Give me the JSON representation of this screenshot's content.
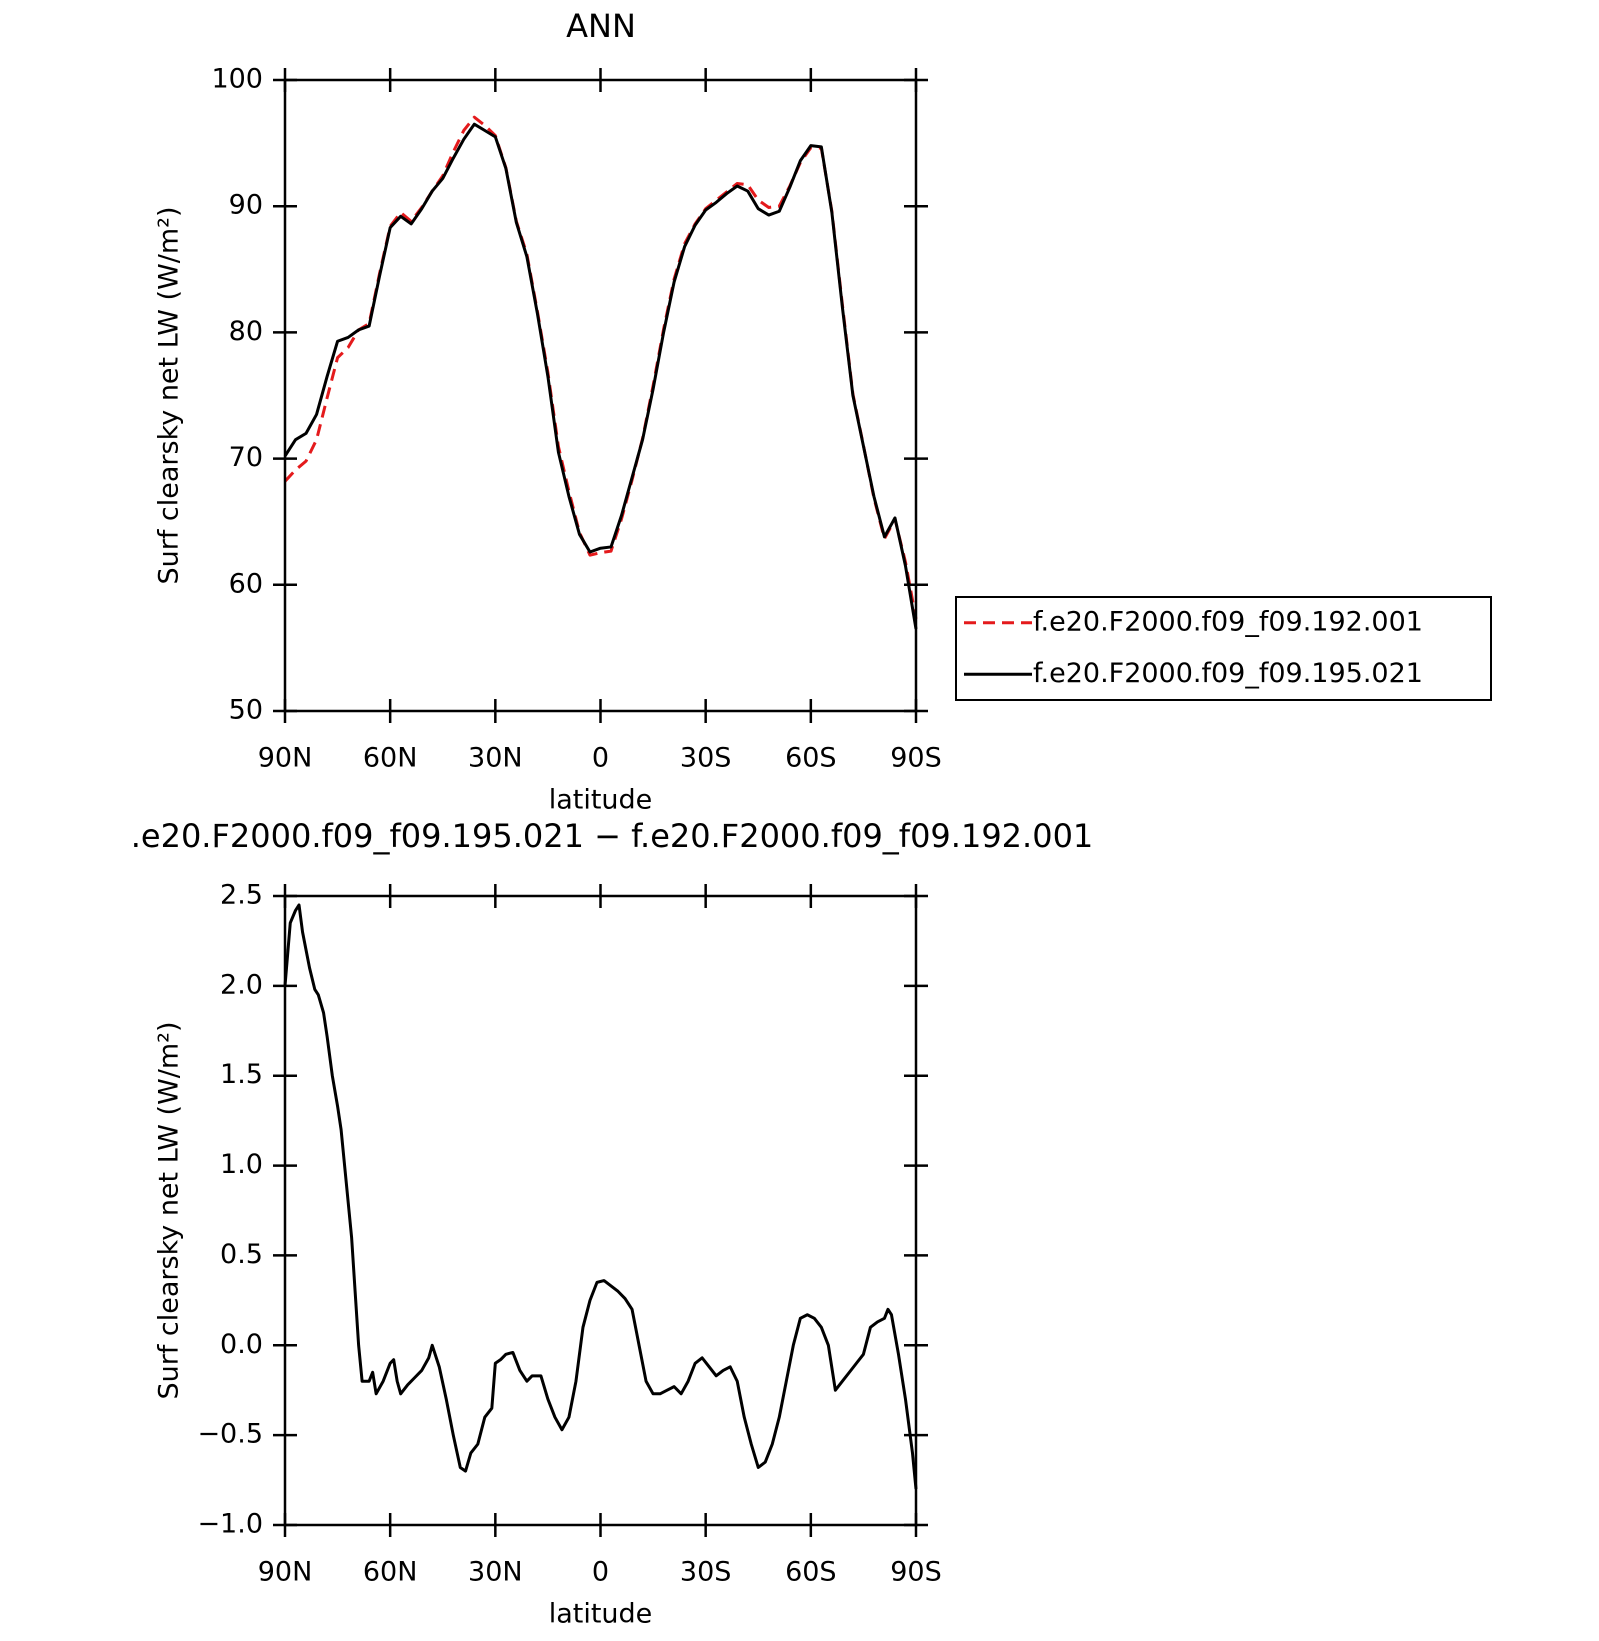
{
  "chart_data": [
    {
      "type": "line",
      "title": "ANN",
      "ylabel": "Surf clearsky net LW (W/m²)",
      "xlabel": "latitude",
      "x": [
        90,
        87,
        84,
        81,
        78,
        75,
        72,
        69,
        66,
        63,
        60,
        57,
        54,
        51,
        48,
        45,
        42,
        39,
        36,
        33,
        30,
        27,
        24,
        21,
        18,
        15,
        12,
        9,
        6,
        3,
        0,
        -3,
        -6,
        -9,
        -12,
        -15,
        -18,
        -21,
        -24,
        -27,
        -30,
        -33,
        -36,
        -39,
        -42,
        -45,
        -48,
        -51,
        -54,
        -57,
        -60,
        -63,
        -66,
        -69,
        -72,
        -75,
        -78,
        -81,
        -84,
        -87,
        -90
      ],
      "xlim": [
        90,
        -90
      ],
      "xticks": [
        {
          "value": 90,
          "label": "90N"
        },
        {
          "value": 60,
          "label": "60N"
        },
        {
          "value": 30,
          "label": "30N"
        },
        0,
        {
          "value": -30,
          "label": "30S"
        },
        {
          "value": -60,
          "label": "60S"
        },
        {
          "value": -90,
          "label": "90S"
        }
      ],
      "ylim": [
        50,
        100
      ],
      "yticks": [
        50,
        60,
        70,
        80,
        90,
        100
      ],
      "legend": "right",
      "series": [
        {
          "name": "f.e20.F2000.f09_f09.192.001",
          "color": "#e41a1c",
          "dash": true,
          "values": [
            68.2,
            69.1,
            69.8,
            71.5,
            74.8,
            78.0,
            78.8,
            80.2,
            80.7,
            84.7,
            88.4,
            89.5,
            88.8,
            89.9,
            91.2,
            92.4,
            94.3,
            96.0,
            97.05,
            96.4,
            95.6,
            93.05,
            88.8,
            86.2,
            81.67,
            76.8,
            70.95,
            67.4,
            64.15,
            62.35,
            62.54,
            62.67,
            65.22,
            68.3,
            71.6,
            75.77,
            80.26,
            84.23,
            87.03,
            88.6,
            89.8,
            90.47,
            91.13,
            91.8,
            91.7,
            90.48,
            89.9,
            90.0,
            91.6,
            93.45,
            94.64,
            94.6,
            89.6,
            82.2,
            75.12,
            71.05,
            66.88,
            63.65,
            65.2,
            61.8,
            57.3
          ]
        },
        {
          "name": "f.e20.F2000.f09_f09.195.021",
          "color": "#000000",
          "dash": false,
          "values": [
            70.2,
            71.5,
            72.0,
            73.5,
            76.5,
            79.3,
            79.6,
            80.2,
            80.5,
            84.5,
            88.3,
            89.2,
            88.6,
            89.8,
            91.2,
            92.2,
            93.8,
            95.3,
            96.5,
            96.0,
            95.5,
            93.0,
            88.7,
            86.0,
            81.5,
            76.5,
            70.5,
            67.0,
            64.0,
            62.6,
            62.9,
            63.0,
            65.5,
            68.5,
            71.5,
            75.5,
            80.0,
            84.0,
            86.8,
            88.5,
            89.7,
            90.3,
            91.0,
            91.6,
            91.2,
            89.8,
            89.3,
            89.6,
            91.5,
            93.6,
            94.8,
            94.7,
            89.5,
            82.0,
            75.0,
            71.0,
            67.0,
            63.8,
            65.3,
            61.5,
            56.5
          ]
        }
      ]
    },
    {
      "type": "line",
      "title": ".e20.F2000.f09_f09.195.021 − f.e20.F2000.f09_f09.192.001",
      "ylabel": "Surf clearsky net LW (W/m²)",
      "xlabel": "latitude",
      "x": [
        90,
        88.5,
        87,
        86,
        85,
        84,
        83,
        81.5,
        80.5,
        79,
        78,
        76.5,
        75,
        74,
        72.5,
        71,
        70,
        69,
        68,
        66,
        65,
        64,
        62,
        60,
        59,
        58,
        57,
        55,
        53,
        51,
        49,
        48,
        46,
        44,
        42,
        40,
        38.5,
        37,
        35,
        33,
        31,
        30,
        28.5,
        27,
        25,
        23,
        21,
        19.5,
        17,
        15,
        13,
        11,
        9,
        7,
        5,
        3,
        1,
        -1,
        -3,
        -5,
        -7,
        -9,
        -11,
        -13,
        -15,
        -17,
        -19,
        -21,
        -23,
        -25,
        -27,
        -29,
        -31,
        -33,
        -35,
        -37,
        -39,
        -41,
        -43,
        -45,
        -47,
        -49,
        -51,
        -53,
        -55,
        -57,
        -59,
        -61,
        -63,
        -65,
        -67,
        -69,
        -71,
        -73,
        -75,
        -77,
        -79,
        -81,
        -82,
        -83,
        -85,
        -87,
        -89,
        -90
      ],
      "xlim": [
        90,
        -90
      ],
      "xticks": [
        {
          "value": 90,
          "label": "90N"
        },
        {
          "value": 60,
          "label": "60N"
        },
        {
          "value": 30,
          "label": "30N"
        },
        0,
        {
          "value": -30,
          "label": "30S"
        },
        {
          "value": -60,
          "label": "60S"
        },
        {
          "value": -90,
          "label": "90S"
        }
      ],
      "ylim": [
        -1.0,
        2.5
      ],
      "yticks": [
        {
          "value": -1.0,
          "label": "−1.0"
        },
        {
          "value": -0.5,
          "label": "−0.5"
        },
        {
          "value": 0,
          "label": "0.0"
        },
        0.5,
        {
          "value": 1.0,
          "label": "1.0"
        },
        1.5,
        {
          "value": 2.0,
          "label": "2.0"
        },
        2.5
      ],
      "series": [
        {
          "color": "#000000",
          "dash": false,
          "values": [
            2.0,
            2.35,
            2.42,
            2.45,
            2.3,
            2.2,
            2.1,
            1.98,
            1.95,
            1.85,
            1.72,
            1.5,
            1.33,
            1.2,
            0.9,
            0.6,
            0.3,
            0.0,
            -0.2,
            -0.2,
            -0.15,
            -0.27,
            -0.2,
            -0.1,
            -0.08,
            -0.2,
            -0.27,
            -0.22,
            -0.18,
            -0.14,
            -0.07,
            0.0,
            -0.12,
            -0.3,
            -0.5,
            -0.68,
            -0.7,
            -0.6,
            -0.55,
            -0.4,
            -0.35,
            -0.1,
            -0.08,
            -0.05,
            -0.04,
            -0.14,
            -0.2,
            -0.17,
            -0.17,
            -0.3,
            -0.4,
            -0.47,
            -0.4,
            -0.2,
            0.1,
            0.25,
            0.35,
            0.36,
            0.33,
            0.3,
            0.26,
            0.2,
            0.0,
            -0.2,
            -0.27,
            -0.27,
            -0.25,
            -0.23,
            -0.27,
            -0.2,
            -0.1,
            -0.07,
            -0.12,
            -0.17,
            -0.14,
            -0.12,
            -0.2,
            -0.4,
            -0.55,
            -0.68,
            -0.65,
            -0.55,
            -0.4,
            -0.2,
            0.0,
            0.15,
            0.17,
            0.15,
            0.1,
            0.0,
            -0.25,
            -0.2,
            -0.15,
            -0.1,
            -0.05,
            0.1,
            0.13,
            0.15,
            0.2,
            0.17,
            -0.05,
            -0.3,
            -0.6,
            -0.8
          ]
        }
      ]
    }
  ]
}
